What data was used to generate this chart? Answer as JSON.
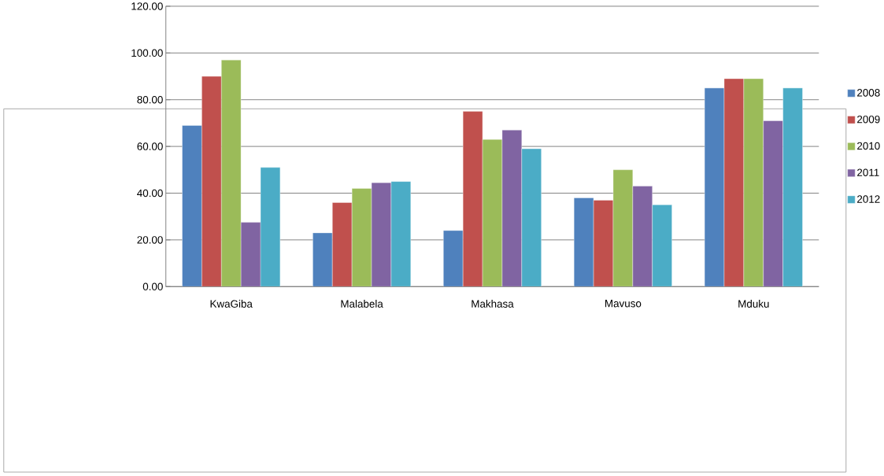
{
  "chart_data": {
    "type": "bar",
    "categories": [
      "KwaGiba",
      "Malabela",
      "Makhasa",
      "Mavuso",
      "Mduku"
    ],
    "series": [
      {
        "name": "2008",
        "color": "#4f81bd",
        "values": [
          69,
          23,
          24,
          38,
          85
        ]
      },
      {
        "name": "2009",
        "color": "#c0504d",
        "values": [
          90,
          36,
          75,
          37,
          89
        ]
      },
      {
        "name": "2010",
        "color": "#9bbb59",
        "values": [
          97,
          42,
          63,
          50,
          89
        ]
      },
      {
        "name": "2011",
        "color": "#8064a2",
        "values": [
          27.5,
          44.5,
          67,
          43,
          71
        ]
      },
      {
        "name": "2012",
        "color": "#4bacc6",
        "values": [
          51,
          45,
          59,
          35,
          85
        ]
      }
    ],
    "ylim": [
      0,
      120
    ],
    "yticks": [
      {
        "value": 0,
        "label": "0.00"
      },
      {
        "value": 20,
        "label": "20.00"
      },
      {
        "value": 40,
        "label": "40.00"
      },
      {
        "value": 60,
        "label": "60.00"
      },
      {
        "value": 80,
        "label": "80.00"
      },
      {
        "value": 100,
        "label": "100.00"
      },
      {
        "value": 120,
        "label": "120.00"
      }
    ],
    "grid": "y",
    "legend": "right"
  }
}
